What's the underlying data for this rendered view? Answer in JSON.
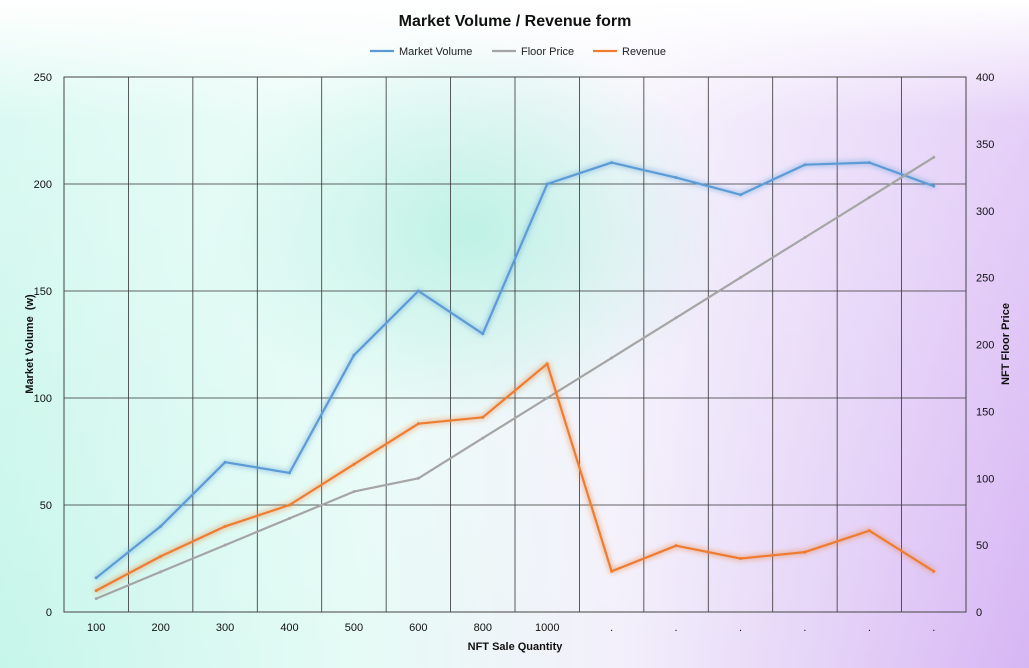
{
  "colors": {
    "market_volume": "#5b9bd5",
    "floor_price": "#a5a5a5",
    "revenue": "#ed7d31",
    "bg_mint": "#c8f5e8",
    "bg_violet": "#d9b8f5"
  },
  "chart_data": {
    "type": "line",
    "title": "Market Volume / Revenue form",
    "xlabel": "NFT Sale Quantity",
    "ylabel": "Market Volume  (w)",
    "y2label": "NFT Floor Price",
    "categories": [
      "100",
      "200",
      "300",
      "400",
      "500",
      "600",
      "800",
      "1000",
      ".",
      ".",
      ".",
      ".",
      ".",
      "."
    ],
    "ylim": [
      0,
      250
    ],
    "yticks": [
      0,
      50,
      100,
      150,
      200,
      250
    ],
    "y2lim": [
      0,
      400
    ],
    "y2ticks": [
      0,
      50,
      100,
      150,
      200,
      250,
      300,
      350,
      400
    ],
    "grid": true,
    "legend_position": "top",
    "series": [
      {
        "name": "Market Volume",
        "axis": "left",
        "color_key": "market_volume",
        "values": [
          16,
          40,
          70,
          65,
          120,
          150,
          130,
          200,
          210,
          203,
          195,
          209,
          210,
          199
        ]
      },
      {
        "name": "Floor Price",
        "axis": "right",
        "color_key": "floor_price",
        "values": [
          10,
          30,
          50,
          70,
          90,
          100,
          130,
          160,
          190,
          220,
          250,
          280,
          310,
          340
        ]
      },
      {
        "name": "Revenue",
        "axis": "left",
        "color_key": "revenue",
        "values": [
          10,
          26,
          40,
          50,
          69,
          88,
          91,
          116,
          19,
          31,
          25,
          28,
          38,
          19
        ]
      }
    ]
  }
}
